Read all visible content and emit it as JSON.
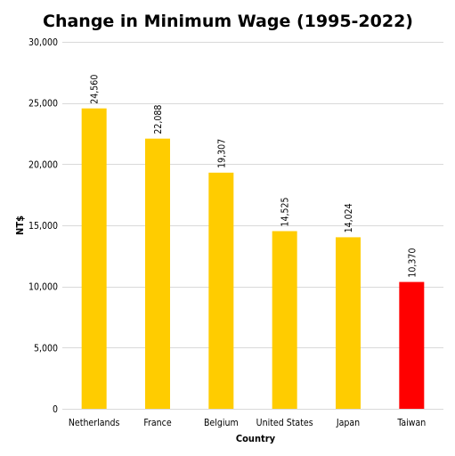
{
  "chart_data": {
    "type": "bar",
    "title": "Change in Minimum Wage (1995-2022)",
    "xlabel": "Country",
    "ylabel": "NT$",
    "categories": [
      "Netherlands",
      "France",
      "Belgium",
      "United States",
      "Japan",
      "Taiwan"
    ],
    "values": [
      24560,
      22088,
      19307,
      14525,
      14024,
      10370
    ],
    "value_labels": [
      "24,560",
      "22,088",
      "19,307",
      "14,525",
      "14,024",
      "10,370"
    ],
    "ylim": [
      0,
      30000
    ],
    "yticks": [
      0,
      5000,
      10000,
      15000,
      20000,
      25000,
      30000
    ],
    "ytick_labels": [
      "0",
      "5,000",
      "10,000",
      "15,000",
      "20,000",
      "25,000",
      "30,000"
    ],
    "grid": true,
    "bar_colors": [
      "#FFCC00",
      "#FFCC00",
      "#FFCC00",
      "#FFCC00",
      "#FFCC00",
      "#FF0000"
    ],
    "data_label_orientation": "vertical"
  }
}
